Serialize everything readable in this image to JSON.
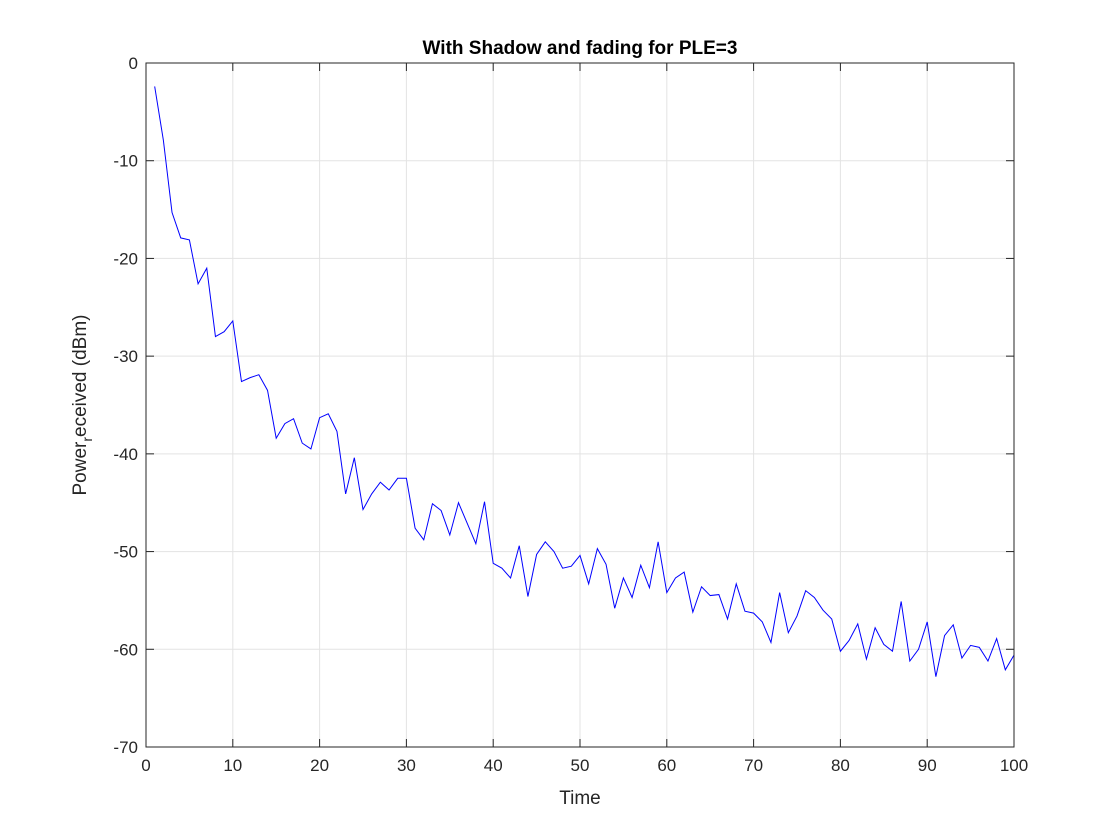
{
  "chart_data": {
    "type": "line",
    "title": "With Shadow and fading for PLE=3",
    "xlabel": "Time",
    "ylabel_parts": {
      "main": "Power",
      "subscript": "r",
      "rest": "eceived (dBm)"
    },
    "xlim": [
      0,
      100
    ],
    "ylim": [
      -70,
      0
    ],
    "xticks": [
      0,
      10,
      20,
      30,
      40,
      50,
      60,
      70,
      80,
      90,
      100
    ],
    "yticks": [
      0,
      -10,
      -20,
      -30,
      -40,
      -50,
      -60,
      -70
    ],
    "xtick_labels": [
      "0",
      "10",
      "20",
      "30",
      "40",
      "50",
      "60",
      "70",
      "80",
      "90",
      "100"
    ],
    "ytick_labels": [
      "0",
      "-10",
      "-20",
      "-30",
      "-40",
      "-50",
      "-60",
      "-70"
    ],
    "grid": true,
    "series": [
      {
        "color": "#0000ff",
        "x": [
          1,
          2,
          3,
          4,
          5,
          6,
          7,
          8,
          9,
          10,
          11,
          12,
          13,
          14,
          15,
          16,
          17,
          18,
          19,
          20,
          21,
          22,
          23,
          24,
          25,
          26,
          27,
          28,
          29,
          30,
          31,
          32,
          33,
          34,
          35,
          36,
          37,
          38,
          39,
          40,
          41,
          42,
          43,
          44,
          45,
          46,
          47,
          48,
          49,
          50,
          51,
          52,
          53,
          54,
          55,
          56,
          57,
          58,
          59,
          60,
          61,
          62,
          63,
          64,
          65,
          66,
          67,
          68,
          69,
          70,
          71,
          72,
          73,
          74,
          75,
          76,
          77,
          78,
          79,
          80,
          81,
          82,
          83,
          84,
          85,
          86,
          87,
          88,
          89,
          90,
          91,
          92,
          93,
          94,
          95,
          96,
          97,
          98,
          99,
          100
        ],
        "y": [
          -2.4,
          -7.9,
          -15.3,
          -17.9,
          -18.1,
          -22.6,
          -21.0,
          -28.0,
          -27.5,
          -26.4,
          -32.6,
          -32.2,
          -31.9,
          -33.5,
          -38.4,
          -36.9,
          -36.4,
          -38.9,
          -39.5,
          -36.3,
          -35.9,
          -37.7,
          -44.1,
          -40.4,
          -45.7,
          -44.1,
          -42.9,
          -43.7,
          -42.5,
          -42.5,
          -47.6,
          -48.8,
          -45.1,
          -45.8,
          -48.3,
          -45.0,
          -47.1,
          -49.2,
          -44.9,
          -51.2,
          -51.7,
          -52.7,
          -49.4,
          -54.6,
          -50.3,
          -49.0,
          -50.0,
          -51.7,
          -51.5,
          -50.4,
          -53.3,
          -49.7,
          -51.3,
          -55.8,
          -52.7,
          -54.7,
          -51.4,
          -53.7,
          -49.0,
          -54.2,
          -52.7,
          -52.1,
          -56.2,
          -53.6,
          -54.5,
          -54.4,
          -56.9,
          -53.3,
          -56.1,
          -56.3,
          -57.2,
          -59.3,
          -54.2,
          -58.3,
          -56.6,
          -54.0,
          -54.7,
          -56.0,
          -56.9,
          -60.2,
          -59.1,
          -57.4,
          -61.0,
          -57.8,
          -59.5,
          -60.2,
          -55.1,
          -61.2,
          -60.0,
          -57.2,
          -62.8,
          -58.6,
          -57.5,
          -60.9,
          -59.6,
          -59.8,
          -61.2,
          -58.9,
          -62.1,
          -60.6
        ]
      }
    ]
  }
}
